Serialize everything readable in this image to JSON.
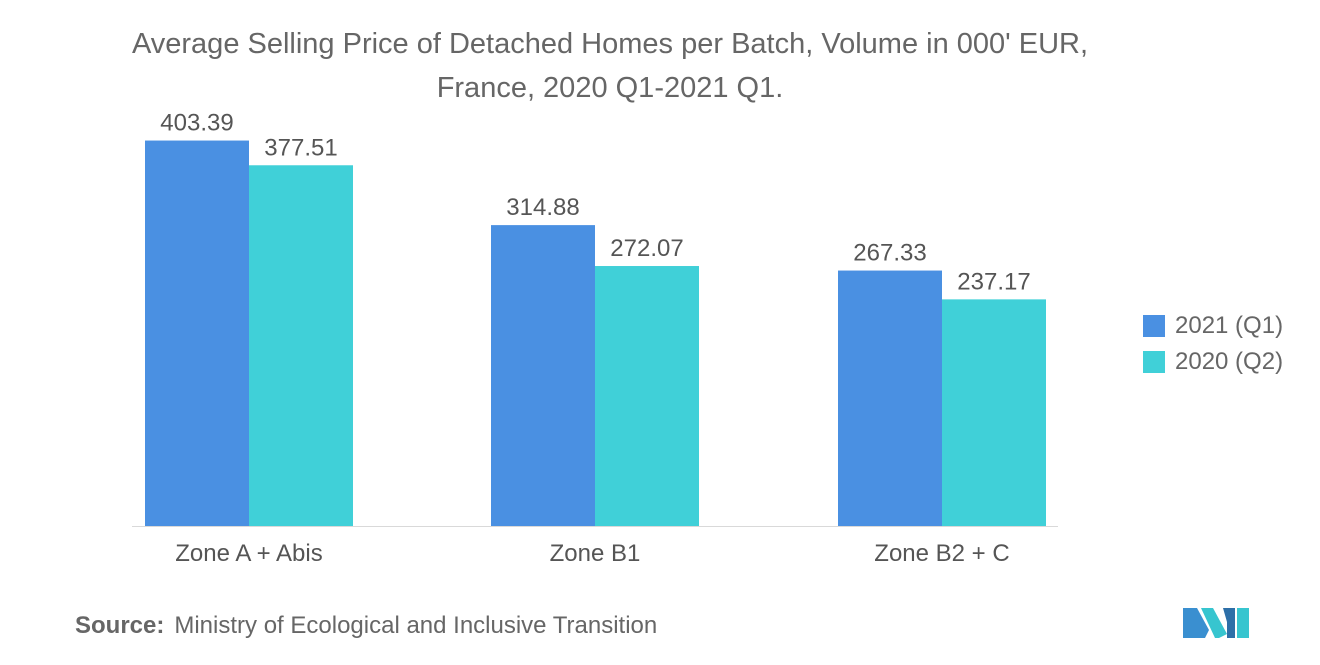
{
  "chart_data": {
    "type": "bar",
    "title_lines": [
      "Average Selling Price of Detached Homes per Batch, Volume in 000' EUR,",
      "France, 2020 Q1-2021 Q1."
    ],
    "categories": [
      "Zone A + Abis",
      "Zone B1",
      "Zone B2 + C"
    ],
    "series": [
      {
        "name": "2021 (Q1)",
        "color": "#4a90e2",
        "values": [
          403.39,
          314.88,
          267.33
        ]
      },
      {
        "name": "2020 (Q2)",
        "color": "#40d0d8",
        "values": [
          377.51,
          272.07,
          237.17
        ]
      }
    ],
    "value_labels": [
      [
        "403.39",
        "314.88",
        "267.33"
      ],
      [
        "377.51",
        "272.07",
        "237.17"
      ]
    ],
    "ylim": [
      0,
      450
    ],
    "y_axis_visible": false,
    "grid": false,
    "legend_position": "right"
  },
  "source": {
    "prefix": "Source:",
    "text": "Ministry of Ecological and Inclusive Transition"
  },
  "logo": {
    "icon": "mordor-intelligence-logo"
  }
}
